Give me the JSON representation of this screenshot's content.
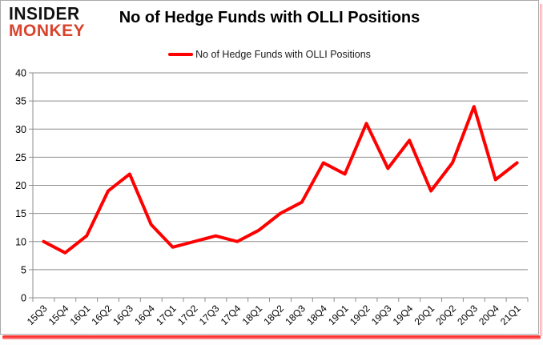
{
  "brand": {
    "line1": "INSIDER",
    "line2": "MONKEY",
    "accent_color": "#d9432c",
    "text_color": "#111111"
  },
  "header": {
    "title": "No of Hedge Funds with OLLI Positions"
  },
  "legend": {
    "label": "No of Hedge Funds with OLLI Positions",
    "line_color": "#ff0000"
  },
  "chart_data": {
    "type": "line",
    "title": "No of Hedge Funds with OLLI Positions",
    "categories": [
      "15Q3",
      "15Q4",
      "16Q1",
      "16Q2",
      "16Q3",
      "16Q4",
      "17Q1",
      "17Q2",
      "17Q3",
      "17Q4",
      "18Q1",
      "18Q2",
      "18Q3",
      "18Q4",
      "19Q1",
      "19Q2",
      "19Q3",
      "19Q4",
      "20Q1",
      "20Q2",
      "20Q3",
      "20Q4",
      "21Q1"
    ],
    "series": [
      {
        "name": "No of Hedge Funds with OLLI Positions",
        "color": "#ff0000",
        "values": [
          10,
          8,
          11,
          19,
          22,
          13,
          9,
          10,
          11,
          10,
          12,
          15,
          17,
          24,
          22,
          31,
          23,
          28,
          19,
          24,
          34,
          21,
          24
        ]
      }
    ],
    "xlabel": "",
    "ylabel": "",
    "ylim": [
      0,
      40
    ],
    "yticks": [
      0,
      5,
      10,
      15,
      20,
      25,
      30,
      35,
      40
    ],
    "grid": true,
    "grid_color": "#8c8c8c",
    "axis_color": "#8c8c8c",
    "tick_label_color": "#000000",
    "line_width": 4,
    "label_rotation": -45,
    "legend_position": "top-center"
  }
}
